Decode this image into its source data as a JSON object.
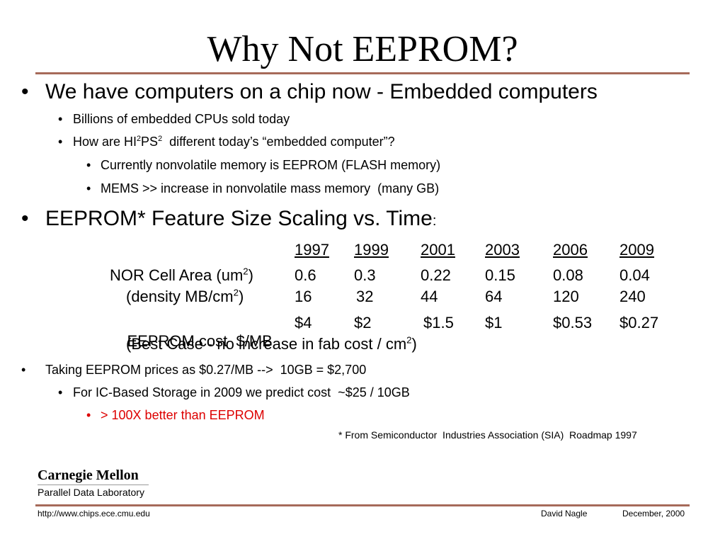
{
  "title": "Why Not EEPROM?",
  "bullets": {
    "b1": "We have computers on a chip now - Embedded computers",
    "b1_1": "Billions of embedded CPUs sold today",
    "b1_2_a": "How are HI",
    "b1_2_sup1": "2",
    "b1_2_b": "PS",
    "b1_2_sup2": "2",
    "b1_2_c": "  different today’s “embedded computer”?",
    "b1_2_1": "Currently nonvolatile memory is EEPROM (FLASH memory)",
    "b1_2_2": "MEMS >> increase in nonvolatile mass memory  (many GB)",
    "b2": "EEPROM* Feature Size Scaling vs. Time",
    "b2_colon": ":",
    "b3": "Taking EEPROM prices as $0.27/MB -->  10GB = $2,700",
    "b3_1": "For IC-Based Storage in 2009 we predict cost  ~$25 / 10GB",
    "b3_1_1": "> 100X better than EEPROM"
  },
  "bullet_char": "•",
  "table": {
    "years": [
      "1997",
      "1999",
      "2001",
      "2003",
      "2006",
      "2009"
    ],
    "rows": [
      {
        "label_a": "NOR Cell Area (um",
        "label_sup": "2",
        "label_b": ")",
        "values": [
          "0.6",
          "0.3",
          "0.22",
          "0.15",
          "0.08",
          "0.04"
        ]
      },
      {
        "label_a": "(density MB/cm",
        "label_sup": "2",
        "label_b": ")",
        "values": [
          "16",
          "32",
          "44",
          "64",
          "120",
          "240"
        ]
      },
      {
        "label_a": "EEPROM cost  $/MB",
        "label_sup": "",
        "label_b": "",
        "values": [
          "$4",
          "$2",
          "$1.5",
          "$1",
          "$0.53",
          "$0.27"
        ]
      }
    ],
    "note_a": "(Best Case - no increase in fab cost / cm",
    "note_sup": "2",
    "note_b": ")"
  },
  "footnote": "* From Semiconductor  Industries Association (SIA)  Roadmap 1997",
  "logo": {
    "name": "Carnegie Mellon",
    "lab": "Parallel Data Laboratory"
  },
  "footer": {
    "url": "http://www.chips.ece.cmu.edu",
    "author": "David Nagle",
    "date": "December, 2000"
  },
  "colors": {
    "rule": "#a66a5a",
    "highlight": "#dd0000"
  }
}
